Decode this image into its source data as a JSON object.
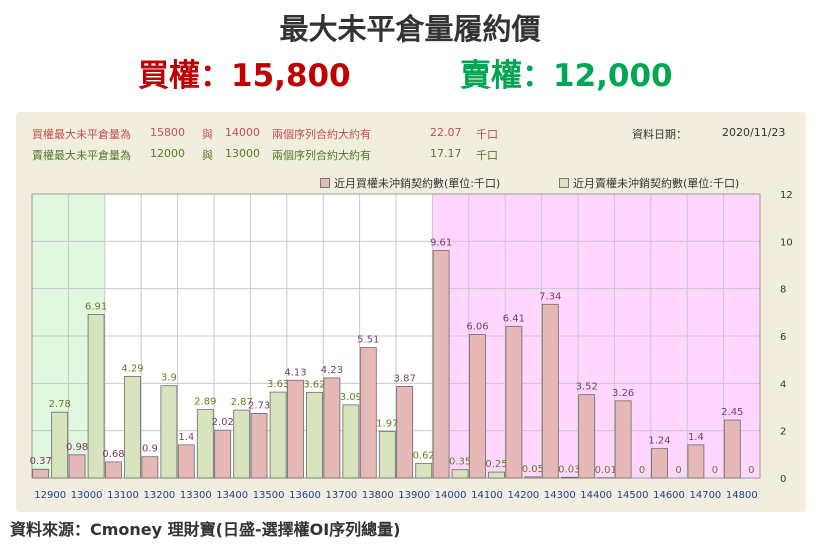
{
  "header": {
    "title": "最大未平倉量履約價",
    "call_text": "買權：15,800",
    "put_text": "賣權：12,000"
  },
  "info": {
    "call_line": {
      "label": "買權最大未平倉量為",
      "strike": "15800",
      "conj": "與",
      "strike2": "14000",
      "desc": "兩個序列合約大約有",
      "value": "22.07",
      "unit": "千口"
    },
    "put_line": {
      "label": "賣權最大未平倉量為",
      "strike": "12000",
      "conj": "與",
      "strike2": "13000",
      "desc": "兩個序列合約大約有",
      "value": "17.17",
      "unit": "千口"
    },
    "date_label": "資料日期：",
    "date_value": "2020/11/23"
  },
  "source": "資料來源：Cmoney 理財寶(日盛-選擇權OI序列總量)",
  "chart_data": {
    "type": "bar",
    "categories": [
      "12900",
      "13000",
      "13100",
      "13200",
      "13300",
      "13400",
      "13500",
      "13600",
      "13700",
      "13800",
      "13900",
      "14000",
      "14100",
      "14200",
      "14300",
      "14400",
      "14500",
      "14600",
      "14700",
      "14800"
    ],
    "series": [
      {
        "name": "近月買權未沖銷契約數(單位:千口)",
        "color": "#e6b8b7",
        "values": [
          0.37,
          0.98,
          0.68,
          0.9,
          1.4,
          2.02,
          2.73,
          4.13,
          4.23,
          5.51,
          3.87,
          9.61,
          6.06,
          6.41,
          7.34,
          3.52,
          3.26,
          1.24,
          1.4,
          2.45
        ]
      },
      {
        "name": "近月賣權未沖銷契約數(單位:千口)",
        "color": "#d7e4bd",
        "values": [
          2.78,
          6.91,
          4.29,
          3.9,
          2.89,
          2.87,
          3.63,
          3.62,
          3.09,
          1.97,
          0.62,
          0.35,
          0.25,
          0.05,
          0.03,
          0.01,
          0,
          0,
          0,
          0
        ]
      }
    ],
    "ylim": [
      0,
      12
    ],
    "yticks": [
      0,
      2,
      4,
      6,
      8,
      10,
      12
    ],
    "y_axis_side": "right",
    "shaded_regions": [
      {
        "from": "12900",
        "to": "13000",
        "color": "#e0f7e0"
      },
      {
        "from": "14000",
        "to": "14800",
        "color": "#ffd6ff"
      }
    ],
    "grid": true,
    "legend": "top-right"
  }
}
